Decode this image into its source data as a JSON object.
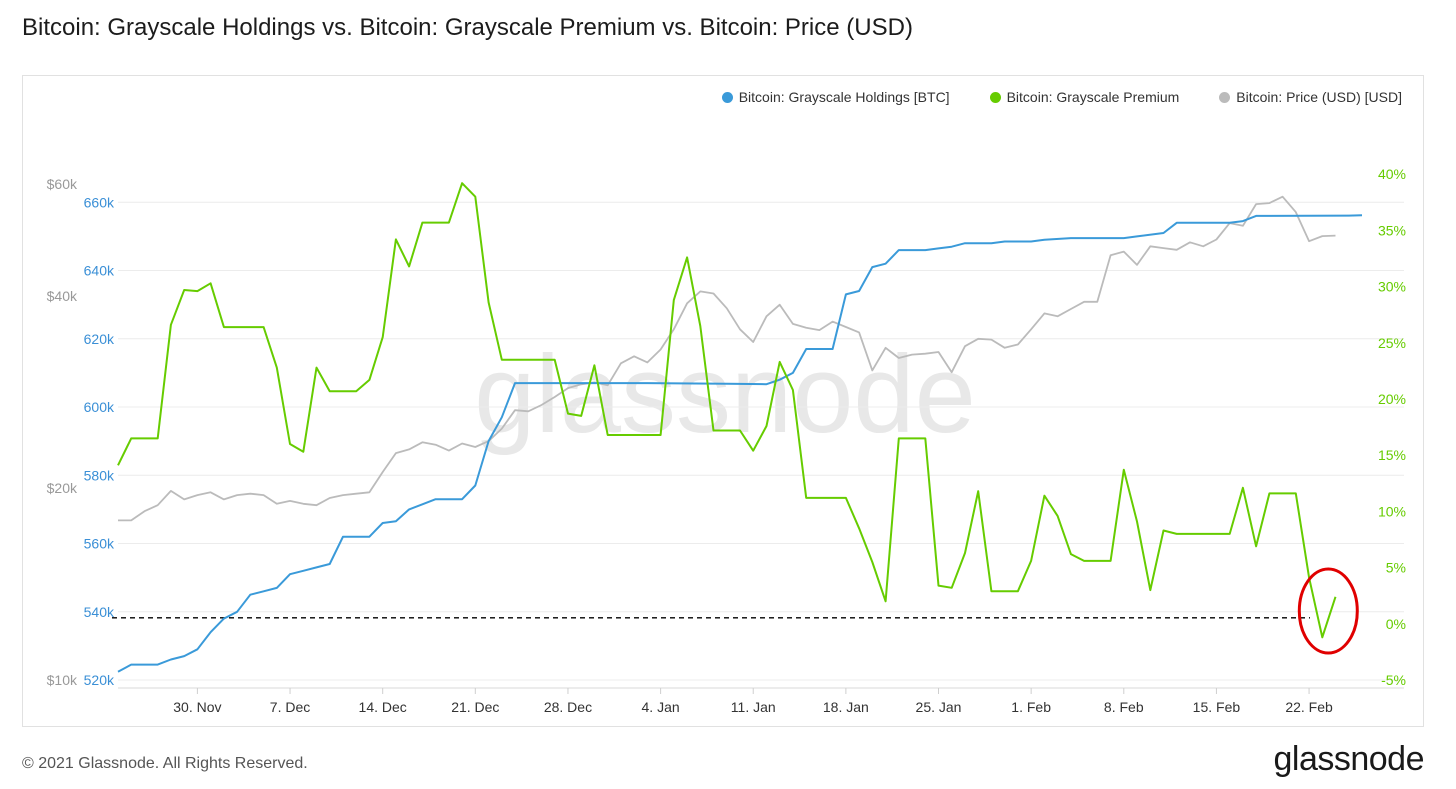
{
  "page": {
    "title": "Bitcoin: Grayscale Holdings vs. Bitcoin: Grayscale Premium vs. Bitcoin: Price (USD)",
    "footer": "© 2021 Glassnode. All Rights Reserved.",
    "brand": "glassnode",
    "watermark": "glassnode"
  },
  "chart_data": {
    "type": "line",
    "x_ticks": [
      "30. Nov",
      "7. Dec",
      "14. Dec",
      "21. Dec",
      "28. Dec",
      "4. Jan",
      "11. Jan",
      "18. Jan",
      "25. Jan",
      "1. Feb",
      "8. Feb",
      "15. Feb",
      "22. Feb"
    ],
    "x_range": [
      "2020-11-24",
      "2021-02-26"
    ],
    "axes": {
      "price": {
        "ticks": [
          10000,
          20000,
          40000,
          60000
        ],
        "tick_labels": [
          "$10k",
          "$20k",
          "$40k",
          "$60k"
        ],
        "scale": "log",
        "color": "#999999"
      },
      "holdings": {
        "ticks": [
          520000,
          540000,
          560000,
          580000,
          600000,
          620000,
          640000,
          660000
        ],
        "tick_labels": [
          "520k",
          "540k",
          "560k",
          "580k",
          "600k",
          "620k",
          "640k",
          "660k"
        ],
        "range": [
          520000,
          668000
        ],
        "color": "#3a8fd6"
      },
      "premium": {
        "ticks": [
          -5,
          0,
          5,
          10,
          15,
          20,
          25,
          30,
          35,
          40
        ],
        "tick_labels": [
          "-5%",
          "0%",
          "5%",
          "10%",
          "15%",
          "20%",
          "25%",
          "30%",
          "35%",
          "40%"
        ],
        "range": [
          -5,
          41
        ],
        "color": "#66cc00"
      }
    },
    "series": [
      {
        "name": "Bitcoin: Grayscale Holdings [BTC]",
        "axis": "holdings",
        "color": "#3a9ad9",
        "points": [
          [
            "2020-11-24",
            522400
          ],
          [
            "2020-11-25",
            524500
          ],
          [
            "2020-11-27",
            524500
          ],
          [
            "2020-11-28",
            526000
          ],
          [
            "2020-11-29",
            527000
          ],
          [
            "2020-11-30",
            529000
          ],
          [
            "2020-12-01",
            534000
          ],
          [
            "2020-12-02",
            538000
          ],
          [
            "2020-12-03",
            540000
          ],
          [
            "2020-12-04",
            545000
          ],
          [
            "2020-12-05",
            546000
          ],
          [
            "2020-12-06",
            547000
          ],
          [
            "2020-12-07",
            551000
          ],
          [
            "2020-12-08",
            552000
          ],
          [
            "2020-12-09",
            553000
          ],
          [
            "2020-12-10",
            554000
          ],
          [
            "2020-12-11",
            562000
          ],
          [
            "2020-12-13",
            562000
          ],
          [
            "2020-12-14",
            566000
          ],
          [
            "2020-12-15",
            566500
          ],
          [
            "2020-12-16",
            570000
          ],
          [
            "2020-12-17",
            571500
          ],
          [
            "2020-12-18",
            573000
          ],
          [
            "2020-12-20",
            573000
          ],
          [
            "2020-12-21",
            577000
          ],
          [
            "2020-12-22",
            590000
          ],
          [
            "2020-12-23",
            597000
          ],
          [
            "2020-12-24",
            607000
          ],
          [
            "2020-12-30",
            607000
          ],
          [
            "2021-01-03",
            607000
          ],
          [
            "2021-01-09",
            606800
          ],
          [
            "2021-01-12",
            606700
          ],
          [
            "2021-01-13",
            608000
          ],
          [
            "2021-01-14",
            610000
          ],
          [
            "2021-01-15",
            617000
          ],
          [
            "2021-01-17",
            617000
          ],
          [
            "2021-01-18",
            633000
          ],
          [
            "2021-01-19",
            634000
          ],
          [
            "2021-01-20",
            641000
          ],
          [
            "2021-01-21",
            642000
          ],
          [
            "2021-01-22",
            646000
          ],
          [
            "2021-01-24",
            646000
          ],
          [
            "2021-01-25",
            646500
          ],
          [
            "2021-01-26",
            647000
          ],
          [
            "2021-01-27",
            648000
          ],
          [
            "2021-01-29",
            648000
          ],
          [
            "2021-01-30",
            648500
          ],
          [
            "2021-02-01",
            648500
          ],
          [
            "2021-02-02",
            649000
          ],
          [
            "2021-02-04",
            649500
          ],
          [
            "2021-02-06",
            649500
          ],
          [
            "2021-02-08",
            649500
          ],
          [
            "2021-02-09",
            650000
          ],
          [
            "2021-02-11",
            651000
          ],
          [
            "2021-02-12",
            654000
          ],
          [
            "2021-02-14",
            654000
          ],
          [
            "2021-02-16",
            654000
          ],
          [
            "2021-02-17",
            654500
          ],
          [
            "2021-02-18",
            656000
          ],
          [
            "2021-02-25",
            656100
          ],
          [
            "2021-02-26",
            656200
          ]
        ]
      },
      {
        "name": "Bitcoin: Grayscale Premium",
        "axis": "premium",
        "color": "#66cc00",
        "points": [
          [
            "2020-11-24",
            14.1
          ],
          [
            "2020-11-25",
            16.5
          ],
          [
            "2020-11-27",
            16.5
          ],
          [
            "2020-11-28",
            26.6
          ],
          [
            "2020-11-29",
            29.7
          ],
          [
            "2020-11-30",
            29.6
          ],
          [
            "2020-12-01",
            30.3
          ],
          [
            "2020-12-02",
            26.4
          ],
          [
            "2020-12-05",
            26.4
          ],
          [
            "2020-12-06",
            22.8
          ],
          [
            "2020-12-07",
            16.0
          ],
          [
            "2020-12-08",
            15.3
          ],
          [
            "2020-12-09",
            22.8
          ],
          [
            "2020-12-10",
            20.7
          ],
          [
            "2020-12-12",
            20.7
          ],
          [
            "2020-12-13",
            21.7
          ],
          [
            "2020-12-14",
            25.5
          ],
          [
            "2020-12-15",
            34.2
          ],
          [
            "2020-12-16",
            31.8
          ],
          [
            "2020-12-17",
            35.7
          ],
          [
            "2020-12-19",
            35.7
          ],
          [
            "2020-12-20",
            39.2
          ],
          [
            "2020-12-21",
            38.0
          ],
          [
            "2020-12-22",
            28.6
          ],
          [
            "2020-12-23",
            23.5
          ],
          [
            "2020-12-27",
            23.5
          ],
          [
            "2020-12-28",
            18.7
          ],
          [
            "2020-12-29",
            18.5
          ],
          [
            "2020-12-30",
            23.0
          ],
          [
            "2020-12-31",
            16.8
          ],
          [
            "2021-01-04",
            16.8
          ],
          [
            "2021-01-05",
            28.8
          ],
          [
            "2021-01-06",
            32.6
          ],
          [
            "2021-01-07",
            26.5
          ],
          [
            "2021-01-08",
            17.2
          ],
          [
            "2021-01-10",
            17.2
          ],
          [
            "2021-01-11",
            15.4
          ],
          [
            "2021-01-12",
            17.6
          ],
          [
            "2021-01-13",
            23.3
          ],
          [
            "2021-01-14",
            20.8
          ],
          [
            "2021-01-15",
            11.2
          ],
          [
            "2021-01-18",
            11.2
          ],
          [
            "2021-01-19",
            8.5
          ],
          [
            "2021-01-20",
            5.5
          ],
          [
            "2021-01-21",
            2.0
          ],
          [
            "2021-01-22",
            16.5
          ],
          [
            "2021-01-24",
            16.5
          ],
          [
            "2021-01-25",
            3.4
          ],
          [
            "2021-01-26",
            3.2
          ],
          [
            "2021-01-27",
            6.3
          ],
          [
            "2021-01-28",
            11.8
          ],
          [
            "2021-01-29",
            2.9
          ],
          [
            "2021-01-31",
            2.9
          ],
          [
            "2021-02-01",
            5.6
          ],
          [
            "2021-02-02",
            11.4
          ],
          [
            "2021-02-03",
            9.6
          ],
          [
            "2021-02-04",
            6.2
          ],
          [
            "2021-02-05",
            5.6
          ],
          [
            "2021-02-07",
            5.6
          ],
          [
            "2021-02-08",
            13.7
          ],
          [
            "2021-02-09",
            9.1
          ],
          [
            "2021-02-10",
            3.0
          ],
          [
            "2021-02-11",
            8.3
          ],
          [
            "2021-02-12",
            8.0
          ],
          [
            "2021-02-16",
            8.0
          ],
          [
            "2021-02-17",
            12.1
          ],
          [
            "2021-02-18",
            6.9
          ],
          [
            "2021-02-19",
            11.6
          ],
          [
            "2021-02-21",
            11.6
          ],
          [
            "2021-02-22",
            4.1
          ],
          [
            "2021-02-23",
            -1.2
          ],
          [
            "2021-02-24",
            2.4
          ]
        ]
      },
      {
        "name": "Bitcoin: Price (USD) [USD]",
        "axis": "price",
        "color": "#bbbbbb",
        "points": [
          [
            "2020-11-24",
            17800
          ],
          [
            "2020-11-25",
            17800
          ],
          [
            "2020-11-26",
            18400
          ],
          [
            "2020-11-27",
            18800
          ],
          [
            "2020-11-28",
            19800
          ],
          [
            "2020-11-29",
            19200
          ],
          [
            "2020-11-30",
            19500
          ],
          [
            "2020-12-01",
            19700
          ],
          [
            "2020-12-02",
            19200
          ],
          [
            "2020-12-03",
            19500
          ],
          [
            "2020-12-04",
            19600
          ],
          [
            "2020-12-05",
            19500
          ],
          [
            "2020-12-06",
            18900
          ],
          [
            "2020-12-07",
            19100
          ],
          [
            "2020-12-08",
            18900
          ],
          [
            "2020-12-09",
            18800
          ],
          [
            "2020-12-10",
            19300
          ],
          [
            "2020-12-11",
            19500
          ],
          [
            "2020-12-12",
            19600
          ],
          [
            "2020-12-13",
            19700
          ],
          [
            "2020-12-14",
            21200
          ],
          [
            "2020-12-15",
            22700
          ],
          [
            "2020-12-16",
            23000
          ],
          [
            "2020-12-17",
            23600
          ],
          [
            "2020-12-18",
            23400
          ],
          [
            "2020-12-19",
            22900
          ],
          [
            "2020-12-20",
            23500
          ],
          [
            "2020-12-21",
            23200
          ],
          [
            "2020-12-22",
            23700
          ],
          [
            "2020-12-23",
            24800
          ],
          [
            "2020-12-24",
            26500
          ],
          [
            "2020-12-25",
            26400
          ],
          [
            "2020-12-26",
            27000
          ],
          [
            "2020-12-27",
            27800
          ],
          [
            "2020-12-28",
            28700
          ],
          [
            "2020-12-29",
            29100
          ],
          [
            "2020-12-30",
            29300
          ],
          [
            "2020-12-31",
            29000
          ],
          [
            "2021-01-01",
            31400
          ],
          [
            "2021-01-02",
            32200
          ],
          [
            "2021-01-03",
            31500
          ],
          [
            "2021-01-04",
            33000
          ],
          [
            "2021-01-05",
            35500
          ],
          [
            "2021-01-06",
            39000
          ],
          [
            "2021-01-07",
            40700
          ],
          [
            "2021-01-08",
            40400
          ],
          [
            "2021-01-09",
            38300
          ],
          [
            "2021-01-10",
            35500
          ],
          [
            "2021-01-11",
            33900
          ],
          [
            "2021-01-12",
            37200
          ],
          [
            "2021-01-13",
            38800
          ],
          [
            "2021-01-14",
            36200
          ],
          [
            "2021-01-15",
            35700
          ],
          [
            "2021-01-16",
            35400
          ],
          [
            "2021-01-17",
            36500
          ],
          [
            "2021-01-18",
            35800
          ],
          [
            "2021-01-19",
            35100
          ],
          [
            "2021-01-20",
            30600
          ],
          [
            "2021-01-21",
            33200
          ],
          [
            "2021-01-22",
            32000
          ],
          [
            "2021-01-23",
            32400
          ],
          [
            "2021-01-24",
            32500
          ],
          [
            "2021-01-25",
            32700
          ],
          [
            "2021-01-26",
            30400
          ],
          [
            "2021-01-27",
            33400
          ],
          [
            "2021-01-28",
            34300
          ],
          [
            "2021-01-29",
            34200
          ],
          [
            "2021-01-30",
            33200
          ],
          [
            "2021-01-31",
            33600
          ],
          [
            "2021-02-01",
            35500
          ],
          [
            "2021-02-02",
            37600
          ],
          [
            "2021-02-03",
            37200
          ],
          [
            "2021-02-04",
            38200
          ],
          [
            "2021-02-05",
            39200
          ],
          [
            "2021-02-06",
            39200
          ],
          [
            "2021-02-07",
            46400
          ],
          [
            "2021-02-08",
            47000
          ],
          [
            "2021-02-09",
            44800
          ],
          [
            "2021-02-10",
            47900
          ],
          [
            "2021-02-11",
            47600
          ],
          [
            "2021-02-12",
            47300
          ],
          [
            "2021-02-13",
            48600
          ],
          [
            "2021-02-14",
            47900
          ],
          [
            "2021-02-15",
            49100
          ],
          [
            "2021-02-16",
            52100
          ],
          [
            "2021-02-17",
            51600
          ],
          [
            "2021-02-18",
            55800
          ],
          [
            "2021-02-19",
            56000
          ],
          [
            "2021-02-20",
            57300
          ],
          [
            "2021-02-21",
            54200
          ],
          [
            "2021-02-22",
            48800
          ],
          [
            "2021-02-23",
            49700
          ],
          [
            "2021-02-24",
            49800
          ]
        ]
      }
    ],
    "reference_line": {
      "axis": "premium",
      "value": 0,
      "style": "dashed",
      "color": "#000000"
    },
    "annotation": {
      "shape": "ellipse",
      "color": "#e00000",
      "around": "2021-02-23"
    },
    "legend": {
      "position": "top-right",
      "items": [
        {
          "label": "Bitcoin: Grayscale Holdings [BTC]",
          "color": "#3a9ad9"
        },
        {
          "label": "Bitcoin: Grayscale Premium",
          "color": "#66cc00"
        },
        {
          "label": "Bitcoin: Price (USD) [USD]",
          "color": "#bbbbbb"
        }
      ]
    },
    "grid": {
      "horizontal": true,
      "vertical": false
    }
  }
}
